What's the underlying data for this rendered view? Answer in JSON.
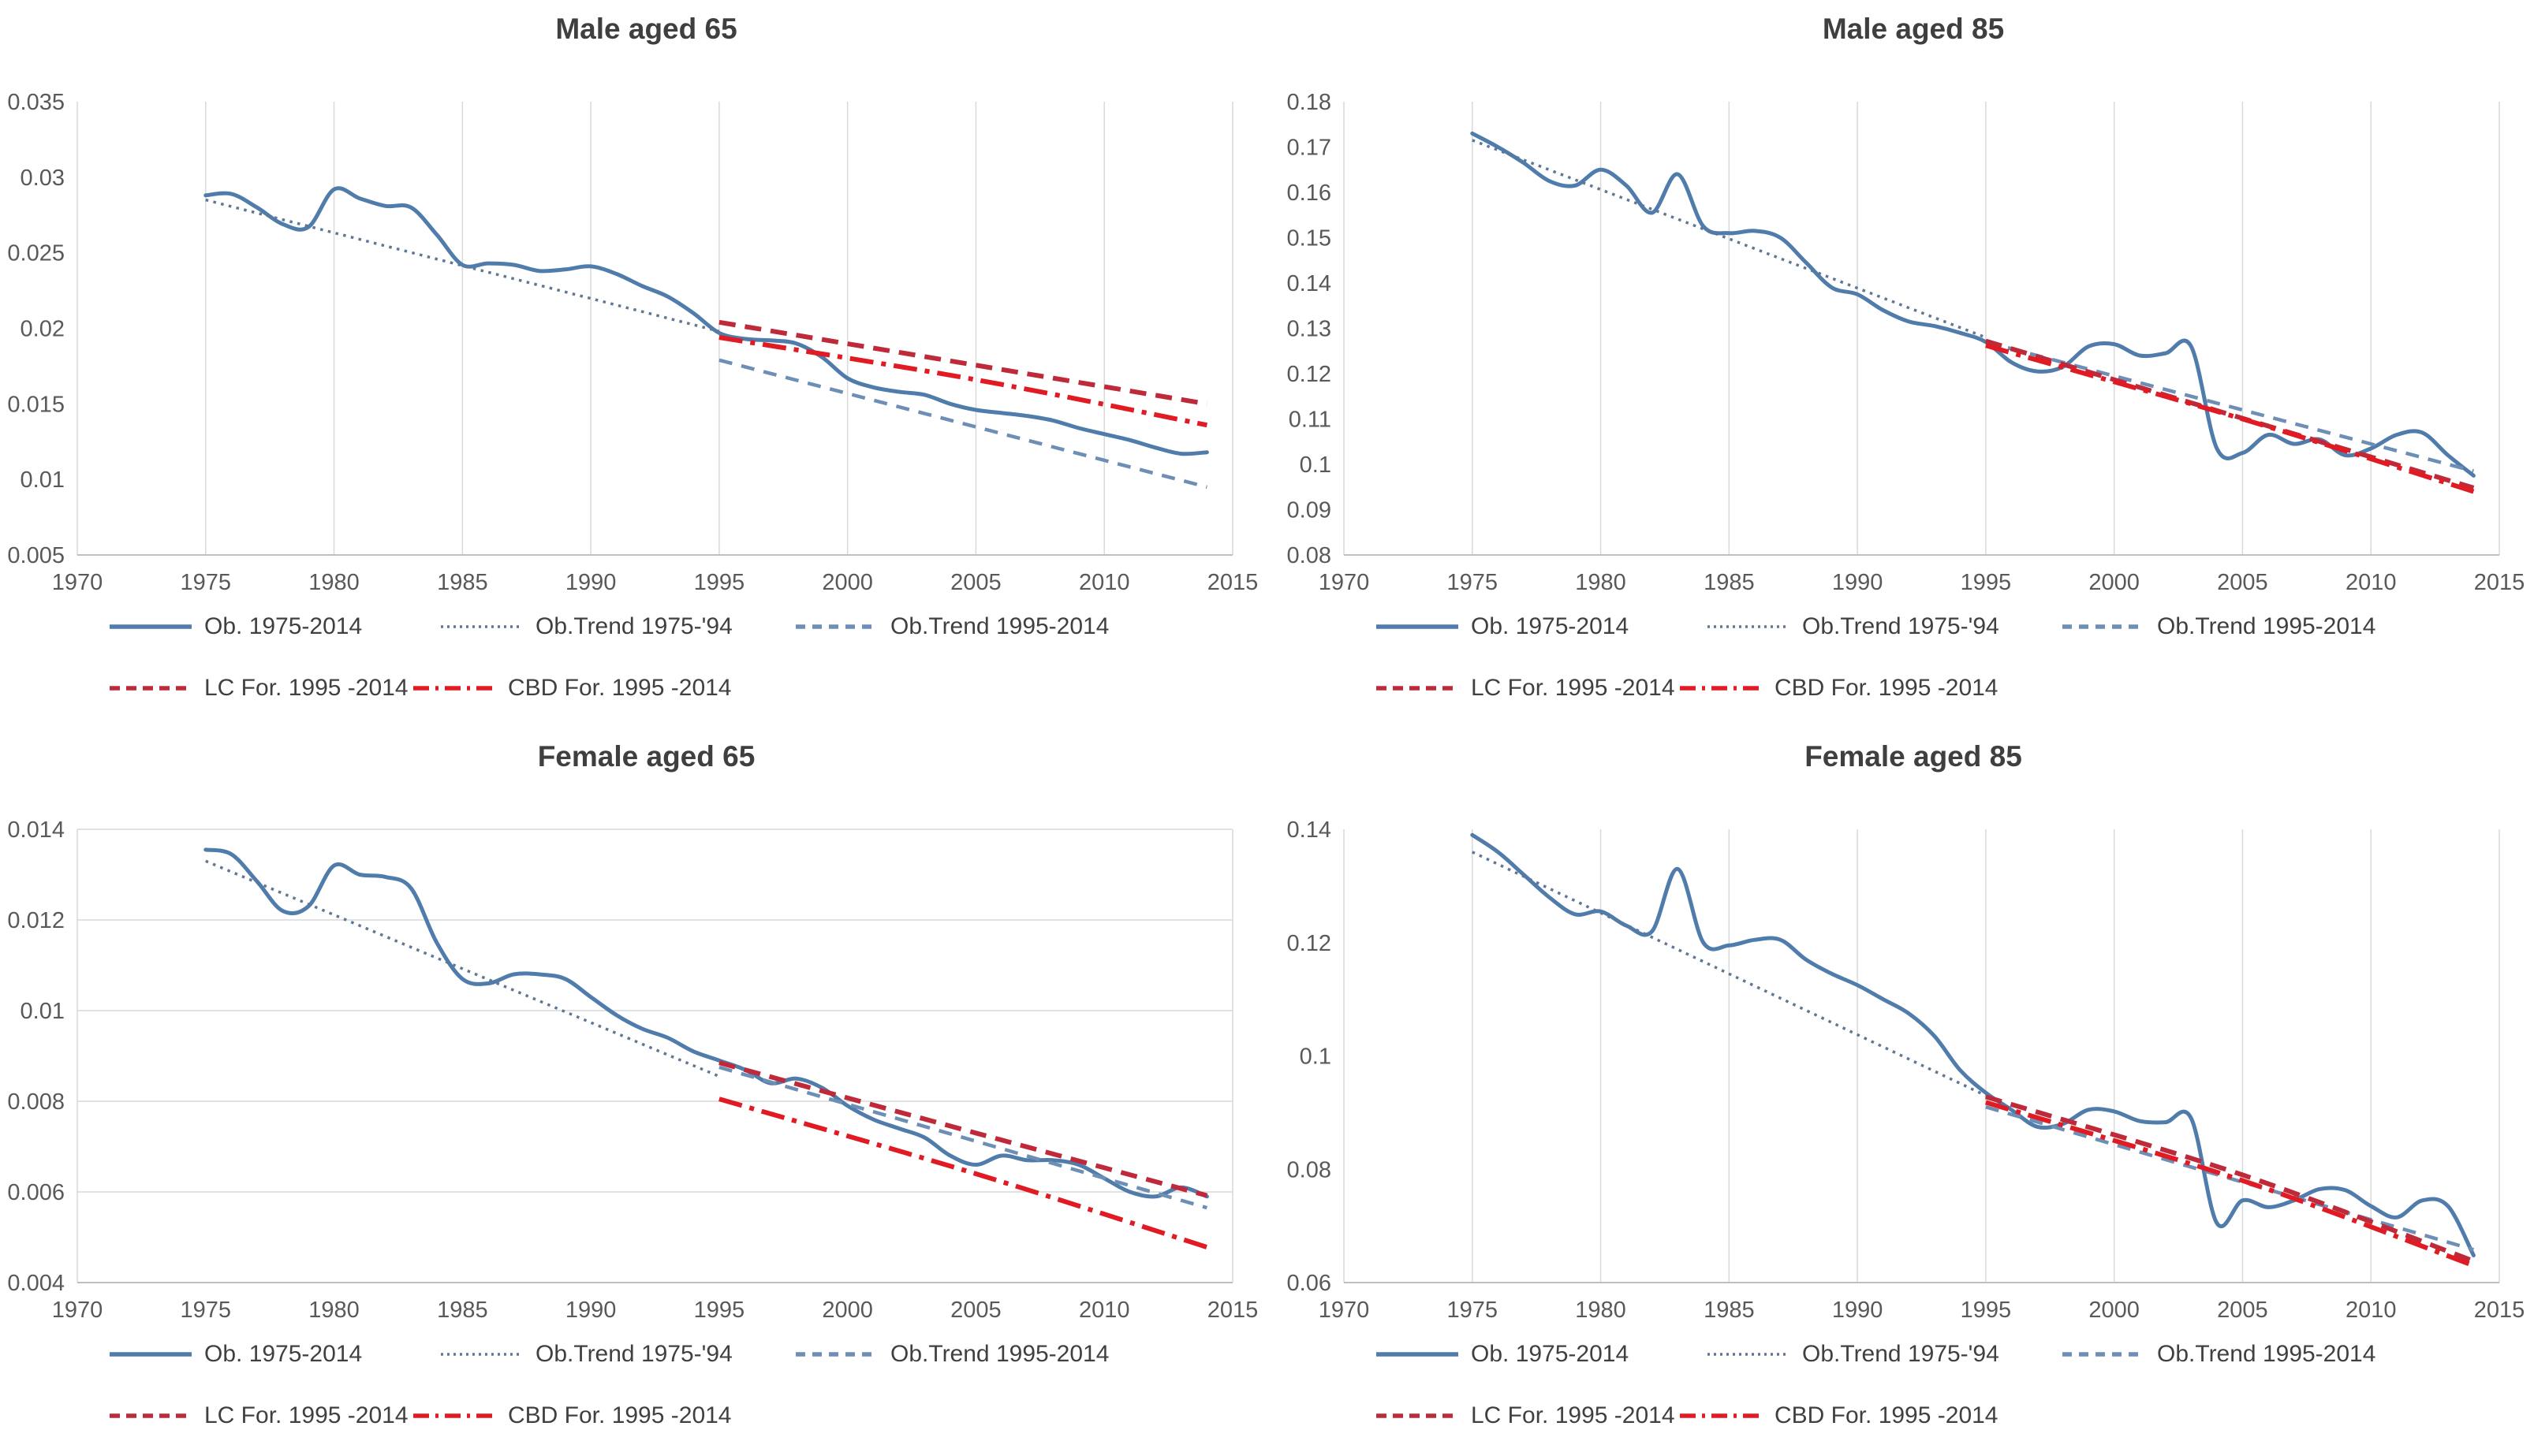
{
  "page_colors": {
    "grid": "#d9d9d9",
    "axis": "#bfbfbf",
    "tick_text": "#595959",
    "title_text": "#3f3f3f",
    "legend_text": "#404040"
  },
  "chart_data": [
    {
      "type": "line",
      "title": "Male aged 65",
      "xlim": [
        1970,
        2015
      ],
      "ylim": [
        0.005,
        0.035
      ],
      "grid": "vertical",
      "legend_position": "bottom",
      "xticks": [
        1970,
        1975,
        1980,
        1985,
        1990,
        1995,
        2000,
        2005,
        2010,
        2015
      ],
      "yticks": [
        {
          "value": 0.035,
          "label": "0.035"
        },
        {
          "value": 0.03,
          "label": "0.03"
        },
        {
          "value": 0.025,
          "label": "0.025"
        },
        {
          "value": 0.02,
          "label": "0.02"
        },
        {
          "value": 0.015,
          "label": "0.015"
        },
        {
          "value": 0.01,
          "label": "0.01"
        },
        {
          "value": 0.005,
          "label": "0.005"
        }
      ],
      "series": [
        {
          "name": "Ob. 1975-2014",
          "style": "solid",
          "color": "#4f7cab",
          "width": 5,
          "x_start": 1975,
          "x_step": 1,
          "values": [
            0.0288,
            0.0289,
            0.028,
            0.0269,
            0.0267,
            0.0292,
            0.0286,
            0.0281,
            0.028,
            0.0262,
            0.0242,
            0.0243,
            0.0242,
            0.0238,
            0.0239,
            0.0241,
            0.0236,
            0.0228,
            0.0221,
            0.021,
            0.0197,
            0.0193,
            0.0192,
            0.019,
            0.0181,
            0.0167,
            0.0161,
            0.0158,
            0.0156,
            0.015,
            0.0146,
            0.0144,
            0.0142,
            0.0139,
            0.0134,
            0.013,
            0.0126,
            0.0121,
            0.0117,
            0.0118
          ]
        },
        {
          "name": "Ob.Trend 1975-'94",
          "style": "dotted",
          "color": "#5f7795",
          "width": 3.5,
          "points": [
            [
              1975,
              0.0285
            ],
            [
              1995,
              0.0198
            ]
          ]
        },
        {
          "name": "Ob.Trend 1995-2014",
          "style": "dashed",
          "color": "#6d8eb5",
          "width": 4.5,
          "points": [
            [
              1995,
              0.0179
            ],
            [
              2014,
              0.0095
            ]
          ]
        },
        {
          "name": "LC For. 1995 -2014",
          "style": "dense-dash",
          "color": "#bf2a3a",
          "width": 6,
          "points": [
            [
              1995,
              0.0204
            ],
            [
              2014,
              0.015
            ]
          ]
        },
        {
          "name": "CBD For. 1995 -2014",
          "style": "dashdot",
          "color": "#e01b24",
          "width": 6,
          "points": [
            [
              1995,
              0.0194
            ],
            [
              2005,
              0.0166
            ],
            [
              2014,
              0.0136
            ]
          ]
        }
      ]
    },
    {
      "type": "line",
      "title": "Male aged 85",
      "xlim": [
        1970,
        2015
      ],
      "ylim": [
        0.08,
        0.18
      ],
      "grid": "vertical",
      "legend_position": "bottom",
      "xticks": [
        1970,
        1975,
        1980,
        1985,
        1990,
        1995,
        2000,
        2005,
        2010,
        2015
      ],
      "yticks": [
        {
          "value": 0.18,
          "label": "0.18"
        },
        {
          "value": 0.17,
          "label": "0.17"
        },
        {
          "value": 0.16,
          "label": "0.16"
        },
        {
          "value": 0.15,
          "label": "0.15"
        },
        {
          "value": 0.14,
          "label": "0.14"
        },
        {
          "value": 0.13,
          "label": "0.13"
        },
        {
          "value": 0.12,
          "label": "0.12"
        },
        {
          "value": 0.11,
          "label": "0.11"
        },
        {
          "value": 0.1,
          "label": "0.1"
        },
        {
          "value": 0.09,
          "label": "0.09"
        },
        {
          "value": 0.08,
          "label": "0.08"
        }
      ],
      "series": [
        {
          "name": "Ob. 1975-2014",
          "style": "solid",
          "color": "#4f7cab",
          "width": 5,
          "x_start": 1975,
          "x_step": 1,
          "values": [
            0.173,
            0.17,
            0.1665,
            0.1625,
            0.1615,
            0.165,
            0.1615,
            0.1555,
            0.164,
            0.1525,
            0.151,
            0.1515,
            0.15,
            0.1445,
            0.139,
            0.1375,
            0.134,
            0.1315,
            0.1305,
            0.129,
            0.127,
            0.1225,
            0.1205,
            0.1215,
            0.126,
            0.1265,
            0.124,
            0.1245,
            0.126,
            0.1035,
            0.1025,
            0.1065,
            0.1045,
            0.1055,
            0.102,
            0.1035,
            0.1065,
            0.107,
            0.102,
            0.0975
          ]
        },
        {
          "name": "Ob.Trend 1975-'94",
          "style": "dotted",
          "color": "#5f7795",
          "width": 3.5,
          "points": [
            [
              1975,
              0.1715
            ],
            [
              1995,
              0.128
            ]
          ]
        },
        {
          "name": "Ob.Trend 1995-2014",
          "style": "dashed",
          "color": "#6d8eb5",
          "width": 4.5,
          "points": [
            [
              1995,
              0.127
            ],
            [
              2014,
              0.0985
            ]
          ]
        },
        {
          "name": "LC For. 1995 -2014",
          "style": "dense-dash",
          "color": "#bf2a3a",
          "width": 6,
          "points": [
            [
              1995,
              0.1272
            ],
            [
              2014,
              0.0948
            ]
          ]
        },
        {
          "name": "CBD For. 1995 -2014",
          "style": "dashdot",
          "color": "#e01b24",
          "width": 6,
          "points": [
            [
              1995,
              0.1262
            ],
            [
              2005,
              0.11
            ],
            [
              2014,
              0.094
            ]
          ]
        }
      ]
    },
    {
      "type": "line",
      "title": "Female aged 65",
      "xlim": [
        1970,
        2015
      ],
      "ylim": [
        0.004,
        0.014
      ],
      "grid": "horizontal",
      "legend_position": "bottom",
      "xticks": [
        1970,
        1975,
        1980,
        1985,
        1990,
        1995,
        2000,
        2005,
        2010,
        2015
      ],
      "yticks": [
        {
          "value": 0.014,
          "label": "0.014"
        },
        {
          "value": 0.012,
          "label": "0.012"
        },
        {
          "value": 0.01,
          "label": "0.01"
        },
        {
          "value": 0.008,
          "label": "0.008"
        },
        {
          "value": 0.006,
          "label": "0.006"
        },
        {
          "value": 0.004,
          "label": "0.004"
        }
      ],
      "series": [
        {
          "name": "Ob. 1975-2014",
          "style": "solid",
          "color": "#4f7cab",
          "width": 5,
          "x_start": 1975,
          "x_step": 1,
          "values": [
            0.01355,
            0.01345,
            0.01285,
            0.0122,
            0.0123,
            0.0132,
            0.013,
            0.01295,
            0.0127,
            0.0115,
            0.0107,
            0.0106,
            0.0108,
            0.0108,
            0.0107,
            0.0103,
            0.0099,
            0.0096,
            0.0094,
            0.0091,
            0.0089,
            0.0087,
            0.0084,
            0.0085,
            0.0083,
            0.0079,
            0.0076,
            0.0074,
            0.0072,
            0.0068,
            0.0066,
            0.0068,
            0.0067,
            0.0067,
            0.0066,
            0.0063,
            0.006,
            0.0059,
            0.0061,
            0.0059
          ]
        },
        {
          "name": "Ob.Trend 1975-'94",
          "style": "dotted",
          "color": "#5f7795",
          "width": 3.5,
          "points": [
            [
              1975,
              0.0133
            ],
            [
              1995,
              0.00855
            ]
          ]
        },
        {
          "name": "Ob.Trend 1995-2014",
          "style": "dashed",
          "color": "#6d8eb5",
          "width": 4.5,
          "points": [
            [
              1995,
              0.00875
            ],
            [
              2014,
              0.00565
            ]
          ]
        },
        {
          "name": "LC For. 1995 -2014",
          "style": "dense-dash",
          "color": "#bf2a3a",
          "width": 6,
          "points": [
            [
              1995,
              0.00885
            ],
            [
              2005,
              0.0073
            ],
            [
              2014,
              0.00592
            ]
          ]
        },
        {
          "name": "CBD For. 1995 -2014",
          "style": "dashdot",
          "color": "#e01b24",
          "width": 6,
          "points": [
            [
              1995,
              0.00805
            ],
            [
              2005,
              0.0064
            ],
            [
              2014,
              0.00478
            ]
          ]
        }
      ]
    },
    {
      "type": "line",
      "title": "Female aged 85",
      "xlim": [
        1970,
        2015
      ],
      "ylim": [
        0.06,
        0.14
      ],
      "grid": "vertical",
      "legend_position": "bottom",
      "xticks": [
        1970,
        1975,
        1980,
        1985,
        1990,
        1995,
        2000,
        2005,
        2010,
        2015
      ],
      "yticks": [
        {
          "value": 0.14,
          "label": "0.14"
        },
        {
          "value": 0.12,
          "label": "0.12"
        },
        {
          "value": 0.1,
          "label": "0.1"
        },
        {
          "value": 0.08,
          "label": "0.08"
        },
        {
          "value": 0.06,
          "label": "0.06"
        }
      ],
      "series": [
        {
          "name": "Ob. 1975-2014",
          "style": "solid",
          "color": "#4f7cab",
          "width": 5,
          "x_start": 1975,
          "x_step": 1,
          "values": [
            0.139,
            0.136,
            0.132,
            0.128,
            0.125,
            0.1255,
            0.123,
            0.122,
            0.133,
            0.12,
            0.1195,
            0.1205,
            0.1205,
            0.117,
            0.1145,
            0.1125,
            0.11,
            0.1075,
            0.1035,
            0.0975,
            0.0935,
            0.0905,
            0.0875,
            0.088,
            0.0905,
            0.0902,
            0.0885,
            0.0883,
            0.089,
            0.0705,
            0.0745,
            0.0733,
            0.0745,
            0.0765,
            0.0763,
            0.0735,
            0.0715,
            0.0745,
            0.0735,
            0.0648
          ]
        },
        {
          "name": "Ob.Trend 1975-'94",
          "style": "dotted",
          "color": "#5f7795",
          "width": 3.5,
          "points": [
            [
              1975,
              0.136
            ],
            [
              1995,
              0.093
            ]
          ]
        },
        {
          "name": "Ob.Trend 1995-2014",
          "style": "dashed",
          "color": "#6d8eb5",
          "width": 4.5,
          "points": [
            [
              1995,
              0.091
            ],
            [
              2014,
              0.0658
            ]
          ]
        },
        {
          "name": "LC For. 1995 -2014",
          "style": "dense-dash",
          "color": "#bf2a3a",
          "width": 6,
          "points": [
            [
              1995,
              0.0928
            ],
            [
              2005,
              0.079
            ],
            [
              2014,
              0.0638
            ]
          ]
        },
        {
          "name": "CBD For. 1995 -2014",
          "style": "dashdot",
          "color": "#e01b24",
          "width": 6,
          "points": [
            [
              1995,
              0.0918
            ],
            [
              2005,
              0.078
            ],
            [
              2014,
              0.063
            ]
          ]
        }
      ]
    }
  ]
}
